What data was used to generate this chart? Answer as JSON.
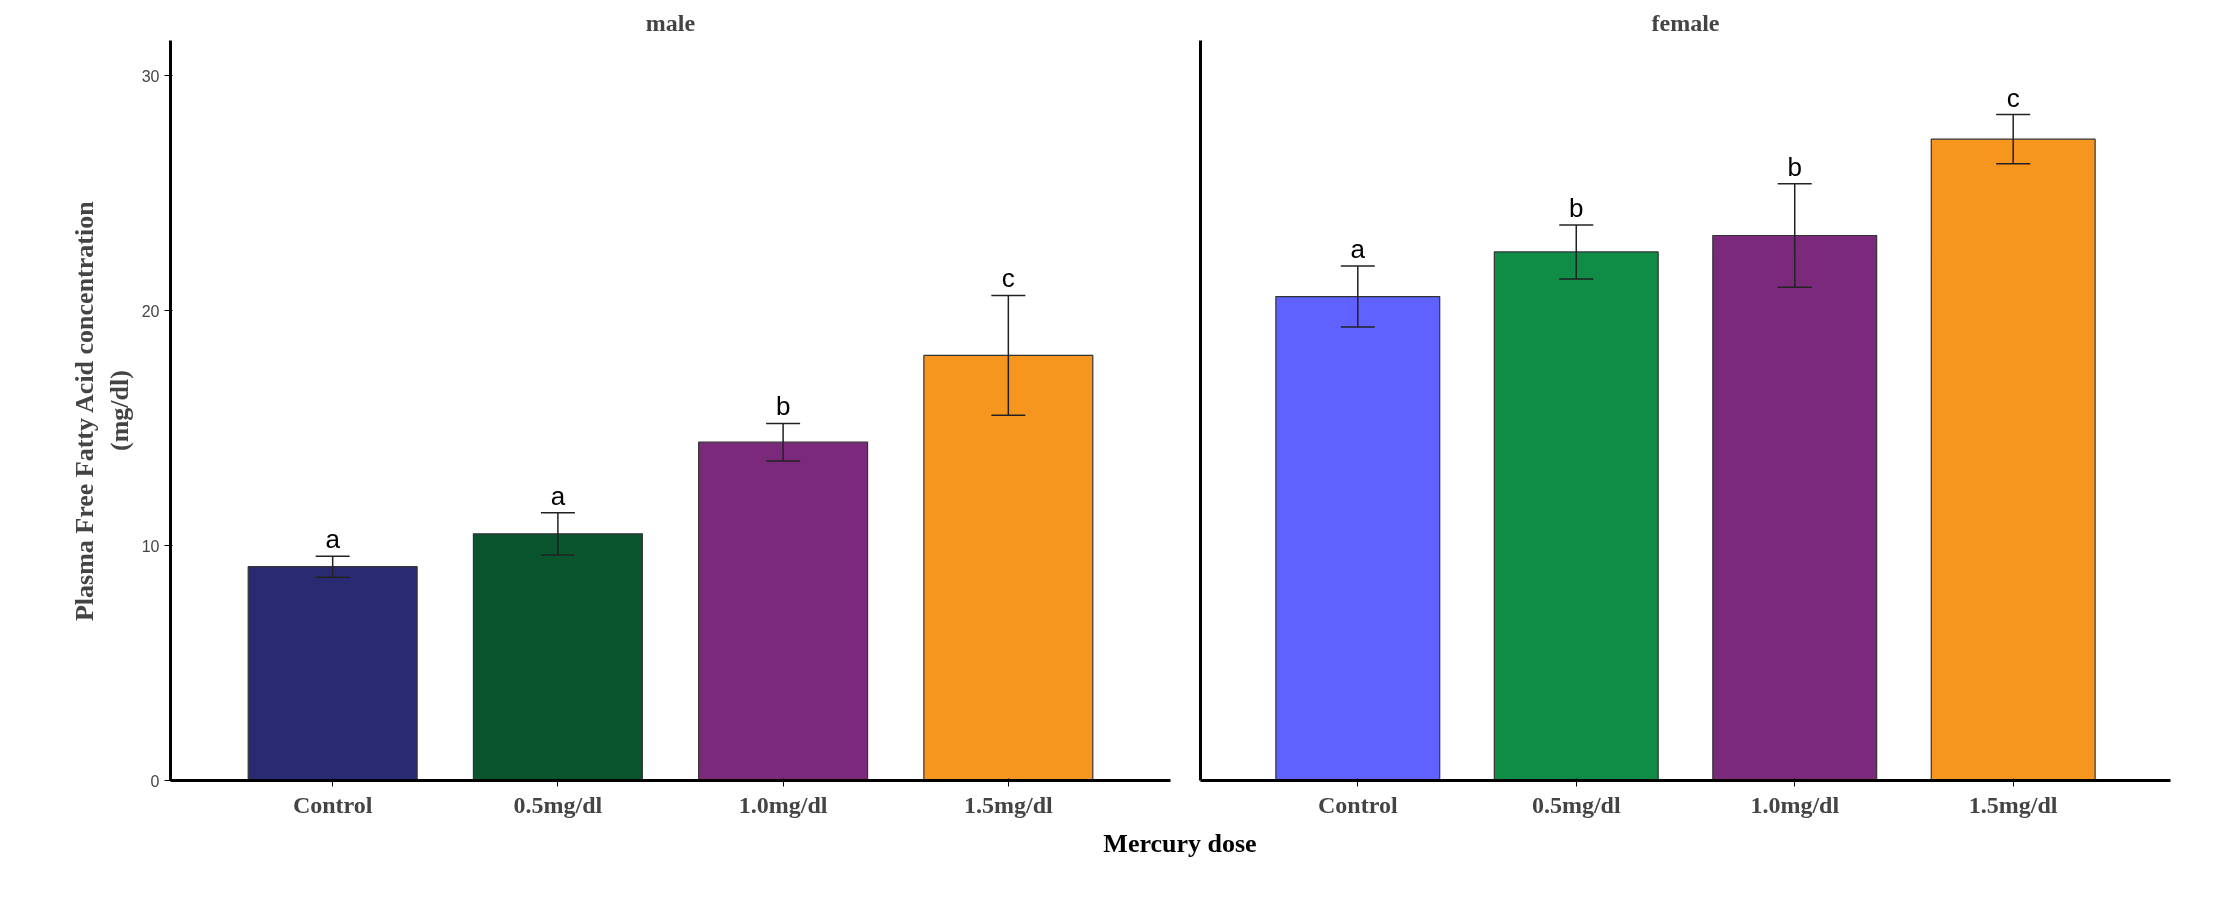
{
  "chart_data": [
    {
      "type": "bar",
      "title": "male",
      "ylabel": "Plasma Free Fatty Acid concentration\n(mg/dl)",
      "xlabel": "Mercury dose",
      "categories": [
        "Control",
        "0.5mg/dl",
        "1.0mg/dl",
        "1.5mg/dl"
      ],
      "values": [
        9.1,
        10.5,
        14.4,
        18.1
      ],
      "errors": [
        0.45,
        0.9,
        0.8,
        2.55
      ],
      "colors": [
        "#2a2a72",
        "#0b552e",
        "#7b2a7b",
        "#f7961e"
      ],
      "ylim": [
        0,
        31.5
      ],
      "yticks": [
        0,
        10,
        20,
        30
      ],
      "grid": false,
      "annotations": [
        {
          "text": "a",
          "x": "Control",
          "y": 9.55
        },
        {
          "text": "a",
          "x": "0.5mg/dl",
          "y": 11.4
        },
        {
          "text": "b",
          "x": "1.0mg/dl",
          "y": 15.2
        },
        {
          "text": "c",
          "x": "1.5mg/dl",
          "y": 20.65
        }
      ]
    },
    {
      "type": "bar",
      "title": "female",
      "categories": [
        "Control",
        "0.5mg/dl",
        "1.0mg/dl",
        "1.5mg/dl"
      ],
      "values": [
        20.6,
        22.5,
        23.2,
        27.3
      ],
      "errors": [
        1.3,
        1.15,
        2.2,
        1.05
      ],
      "colors": [
        "#5f62ff",
        "#0f8c46",
        "#7b2a7b",
        "#f7961e"
      ],
      "ylim": [
        0,
        31.5
      ],
      "yticks": [
        0,
        10,
        20,
        30
      ],
      "grid": false,
      "tick_labels": "x",
      "annotations": [
        {
          "text": "a",
          "x": "Control",
          "y": 21.9
        },
        {
          "text": "b",
          "x": "0.5mg/dl",
          "y": 23.65
        },
        {
          "text": "b",
          "x": "1.0mg/dl",
          "y": 25.4
        },
        {
          "text": "c",
          "x": "1.5mg/dl",
          "y": 28.35
        }
      ]
    }
  ]
}
